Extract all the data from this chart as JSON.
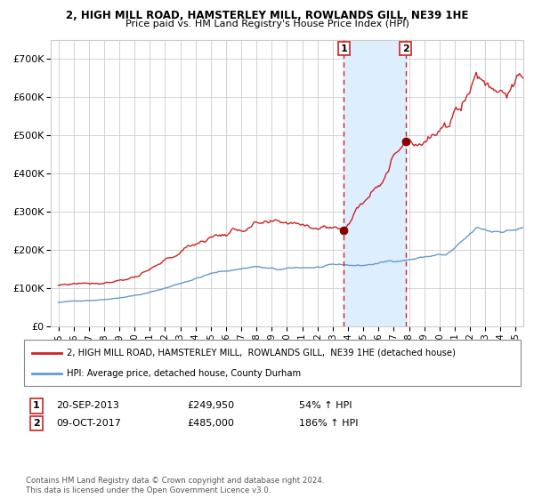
{
  "title": "2, HIGH MILL ROAD, HAMSTERLEY MILL, ROWLANDS GILL, NE39 1HE",
  "subtitle": "Price paid vs. HM Land Registry's House Price Index (HPI)",
  "legend_line1": "2, HIGH MILL ROAD, HAMSTERLEY MILL,  ROWLANDS GILL,  NE39 1HE (detached house)",
  "legend_line2": "HPI: Average price, detached house, County Durham",
  "annotation1_label": "1",
  "annotation1_date": "20-SEP-2013",
  "annotation1_price": "£249,950",
  "annotation1_pct": "54% ↑ HPI",
  "annotation2_label": "2",
  "annotation2_date": "09-OCT-2017",
  "annotation2_price": "£485,000",
  "annotation2_pct": "186% ↑ HPI",
  "sale1_x": 2013.72,
  "sale1_y": 249950,
  "sale2_x": 2017.77,
  "sale2_y": 485000,
  "line_color_red": "#cc2222",
  "line_color_blue": "#6699cc",
  "bg_color": "#ffffff",
  "grid_color": "#cccccc",
  "shade_color": "#ddeeff",
  "footer": "Contains HM Land Registry data © Crown copyright and database right 2024.\nThis data is licensed under the Open Government Licence v3.0.",
  "ylim": [
    0,
    750000
  ],
  "xlim": [
    1994.5,
    2025.5
  ]
}
